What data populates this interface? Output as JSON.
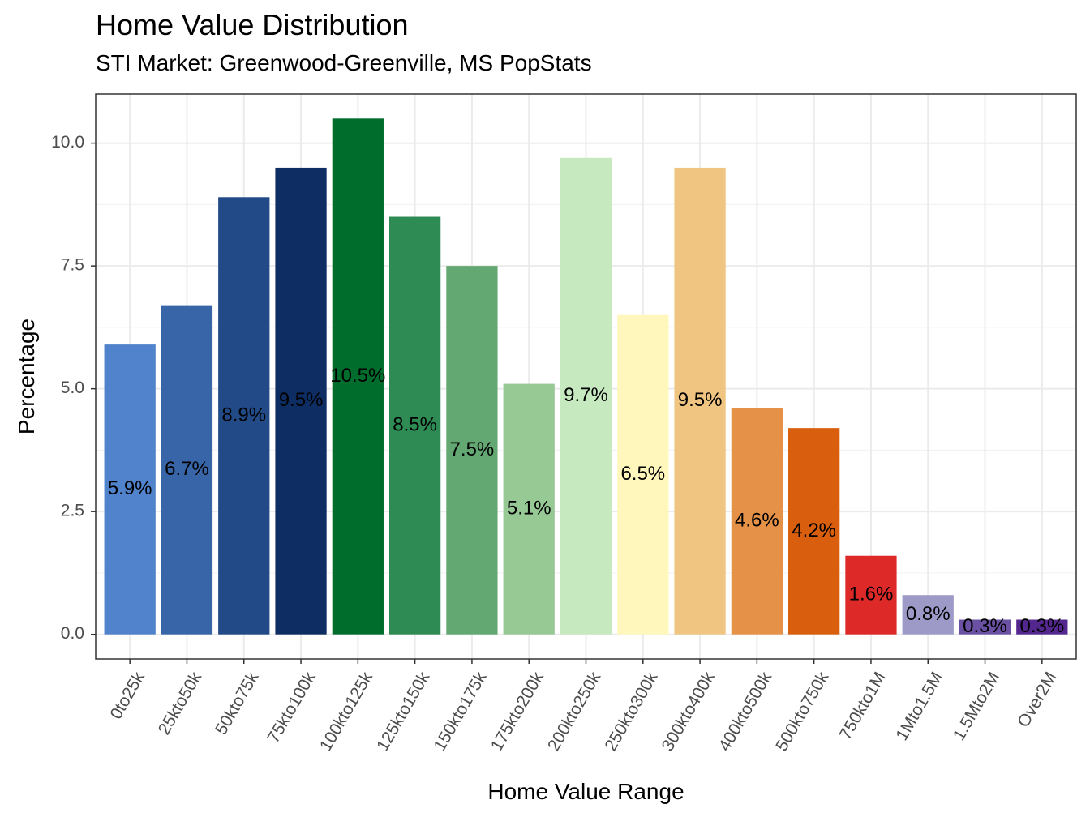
{
  "title": "Home Value Distribution",
  "subtitle": "STI Market: Greenwood-Greenville, MS PopStats",
  "chart_data": {
    "type": "bar",
    "xlabel": "Home Value Range",
    "ylabel": "Percentage",
    "ylim": [
      -0.5,
      11.0
    ],
    "yticks": [
      0.0,
      2.5,
      5.0,
      7.5,
      10.0
    ],
    "ytick_labels": [
      "0.0",
      "2.5",
      "5.0",
      "7.5",
      "10.0"
    ],
    "grid": true,
    "legend": "none",
    "categories": [
      "0to25k",
      "25kto50k",
      "50kto75k",
      "75kto100k",
      "100kto125k",
      "125kto150k",
      "150kto175k",
      "175kto200k",
      "200kto250k",
      "250kto300k",
      "300kto400k",
      "400kto500k",
      "500kto750k",
      "750kto1M",
      "1Mto1.5M",
      "1.5Mto2M",
      "Over2M"
    ],
    "values": [
      5.9,
      6.7,
      8.9,
      9.5,
      10.5,
      8.5,
      7.5,
      5.1,
      9.7,
      6.5,
      9.5,
      4.6,
      4.2,
      1.6,
      0.8,
      0.3,
      0.3
    ],
    "labels": [
      "5.9%",
      "6.7%",
      "8.9%",
      "9.5%",
      "10.5%",
      "8.5%",
      "7.5%",
      "5.1%",
      "9.7%",
      "6.5%",
      "9.5%",
      "4.6%",
      "4.2%",
      "1.6%",
      "0.8%",
      "0.3%",
      "0.3%"
    ],
    "colors": [
      "#5083cc",
      "#3865a8",
      "#214a87",
      "#0d2d63",
      "#006d2c",
      "#2e8b53",
      "#63a872",
      "#97c995",
      "#c7e9c0",
      "#fff7bc",
      "#f0c481",
      "#e59148",
      "#d95f0e",
      "#dd2a28",
      "#9e9ac8",
      "#6a51a3",
      "#54278f"
    ],
    "bar_label_color": "#000000"
  }
}
